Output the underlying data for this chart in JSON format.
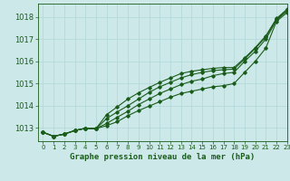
{
  "title": "Graphe pression niveau de la mer (hPa)",
  "bg_color": "#cce8e8",
  "grid_color": "#b0d8d8",
  "line_color": "#1a5c1a",
  "xlim": [
    -0.5,
    23
  ],
  "ylim": [
    1012.4,
    1018.6
  ],
  "yticks": [
    1013,
    1014,
    1015,
    1016,
    1017,
    1018
  ],
  "xtick_labels": [
    "0",
    "1",
    "2",
    "3",
    "4",
    "5",
    "6",
    "7",
    "8",
    "9",
    "10",
    "11",
    "12",
    "13",
    "14",
    "15",
    "16",
    "17",
    "18",
    "19",
    "20",
    "21",
    "22",
    "23"
  ],
  "series": [
    [
      1012.8,
      1012.62,
      1012.72,
      1012.88,
      1012.98,
      1012.97,
      1013.1,
      1013.28,
      1013.55,
      1013.78,
      1013.98,
      1014.18,
      1014.38,
      1014.55,
      1014.65,
      1014.75,
      1014.85,
      1014.9,
      1015.0,
      1015.5,
      1016.0,
      1016.6,
      1017.8,
      1018.2
    ],
    [
      1012.8,
      1012.62,
      1012.72,
      1012.88,
      1012.98,
      1012.97,
      1013.2,
      1013.48,
      1013.75,
      1014.05,
      1014.3,
      1014.55,
      1014.75,
      1014.95,
      1015.1,
      1015.2,
      1015.35,
      1015.45,
      1015.5,
      1016.0,
      1016.45,
      1017.0,
      1017.85,
      1018.28
    ],
    [
      1012.8,
      1012.62,
      1012.72,
      1012.88,
      1012.98,
      1012.97,
      1013.42,
      1013.72,
      1014.0,
      1014.3,
      1014.6,
      1014.85,
      1015.05,
      1015.25,
      1015.4,
      1015.5,
      1015.58,
      1015.62,
      1015.65,
      1016.1,
      1016.58,
      1017.1,
      1017.9,
      1018.3
    ],
    [
      1012.8,
      1012.62,
      1012.72,
      1012.88,
      1012.98,
      1012.97,
      1013.6,
      1013.95,
      1014.3,
      1014.58,
      1014.82,
      1015.05,
      1015.25,
      1015.45,
      1015.55,
      1015.62,
      1015.68,
      1015.72,
      1015.72,
      1016.15,
      1016.62,
      1017.15,
      1017.93,
      1018.35
    ]
  ]
}
